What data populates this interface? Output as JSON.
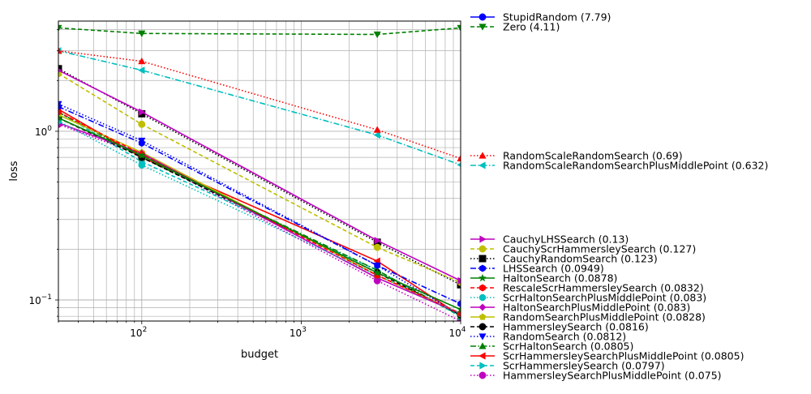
{
  "chart_data": {
    "type": "line",
    "xlabel": "budget",
    "ylabel": "loss",
    "xscale": "log",
    "yscale": "log",
    "xlim": [
      30,
      10000
    ],
    "ylim": [
      0.075,
      4.5
    ],
    "grid": true,
    "legend_position": "right-outside",
    "x_ticks": [
      {
        "value": 100,
        "base": "10",
        "exp": "2"
      },
      {
        "value": 1000,
        "base": "10",
        "exp": "3"
      },
      {
        "value": 10000,
        "base": "10",
        "exp": "4"
      }
    ],
    "y_ticks": [
      {
        "value": 0.1,
        "base": "10",
        "exp": "−1"
      },
      {
        "value": 1,
        "base": "10",
        "exp": "0"
      }
    ],
    "x": [
      30,
      100,
      3000,
      10000
    ],
    "series": [
      {
        "name": "StupidRandom (7.79)",
        "color": "#0000ff",
        "dash": "solid",
        "marker": "circle",
        "values": [
          null,
          null,
          null,
          null
        ],
        "legend_group": "top"
      },
      {
        "name": "Zero (4.11)",
        "color": "#008000",
        "dash": "dashed",
        "marker": "triangle-down",
        "values": [
          4.1,
          3.8,
          3.75,
          4.1
        ],
        "legend_group": "top"
      },
      {
        "name": "RandomScaleRandomSearch (0.69)",
        "color": "#ff0000",
        "dash": "dotted",
        "marker": "triangle-up",
        "values": [
          3.0,
          2.6,
          1.02,
          0.69
        ],
        "legend_group": "middle"
      },
      {
        "name": "RandomScaleRandomSearchPlusMiddlePoint (0.632)",
        "color": "#00bfbf",
        "dash": "dashdot",
        "marker": "triangle-left",
        "values": [
          3.0,
          2.3,
          0.95,
          0.632
        ],
        "legend_group": "middle"
      },
      {
        "name": "CauchyLHSSearch (0.13)",
        "color": "#bf00bf",
        "dash": "solid",
        "marker": "triangle-right",
        "values": [
          2.3,
          1.3,
          0.225,
          0.13
        ],
        "legend_group": "bottom"
      },
      {
        "name": "CauchyScrHammersleySearch (0.127)",
        "color": "#bfbf00",
        "dash": "dashed",
        "marker": "circle",
        "values": [
          2.2,
          1.1,
          0.205,
          0.127
        ],
        "legend_group": "bottom"
      },
      {
        "name": "CauchyRandomSearch (0.123)",
        "color": "#000000",
        "dash": "dotted",
        "marker": "square",
        "values": [
          2.35,
          1.27,
          0.22,
          0.123
        ],
        "legend_group": "bottom"
      },
      {
        "name": "LHSSearch (0.0949)",
        "color": "#0000ff",
        "dash": "dashdot",
        "marker": "hexagon",
        "values": [
          1.4,
          0.85,
          0.16,
          0.0949
        ],
        "legend_group": "bottom"
      },
      {
        "name": "HaltonSearch (0.0878)",
        "color": "#008000",
        "dash": "solid",
        "marker": "star",
        "values": [
          1.2,
          0.72,
          0.145,
          0.0878
        ],
        "legend_group": "bottom"
      },
      {
        "name": "RescaleScrHammersleySearch (0.0832)",
        "color": "#ff0000",
        "dash": "dashed",
        "marker": "hexagon",
        "values": [
          1.3,
          0.73,
          0.14,
          0.0832
        ],
        "legend_group": "bottom"
      },
      {
        "name": "ScrHaltonSearchPlusMiddlePoint (0.083)",
        "color": "#00bfbf",
        "dash": "dotted",
        "marker": "octagon",
        "values": [
          1.15,
          0.63,
          0.14,
          0.083
        ],
        "legend_group": "bottom"
      },
      {
        "name": "HaltonSearchPlusMiddlePoint (0.083)",
        "color": "#bf00bf",
        "dash": "solid",
        "marker": "diamond",
        "values": [
          1.12,
          0.74,
          0.135,
          0.083
        ],
        "legend_group": "bottom"
      },
      {
        "name": "RandomSearchPlusMiddlePoint (0.0828)",
        "color": "#bfbf00",
        "dash": "solid",
        "marker": "pentagon",
        "values": [
          1.25,
          0.75,
          0.14,
          0.0828
        ],
        "legend_group": "bottom"
      },
      {
        "name": "HammersleySearch (0.0816)",
        "color": "#000000",
        "dash": "dashed",
        "marker": "circle",
        "values": [
          1.2,
          0.7,
          0.145,
          0.0816
        ],
        "legend_group": "bottom"
      },
      {
        "name": "RandomSearch (0.0812)",
        "color": "#0000ff",
        "dash": "dotted",
        "marker": "triangle-down",
        "values": [
          1.45,
          0.88,
          0.16,
          0.0812
        ],
        "legend_group": "bottom"
      },
      {
        "name": "ScrHaltonSearch (0.0805)",
        "color": "#008000",
        "dash": "dashdot",
        "marker": "triangle-up",
        "values": [
          1.3,
          0.7,
          0.15,
          0.0805
        ],
        "legend_group": "bottom"
      },
      {
        "name": "ScrHammersleySearchPlusMiddlePoint (0.0805)",
        "color": "#ff0000",
        "dash": "solid",
        "marker": "triangle-left",
        "values": [
          1.35,
          0.7,
          0.17,
          0.0805
        ],
        "legend_group": "bottom"
      },
      {
        "name": "ScrHammersleySearch (0.0797)",
        "color": "#00bfbf",
        "dash": "dashed",
        "marker": "triangle-right",
        "values": [
          1.3,
          0.66,
          0.15,
          0.0797
        ],
        "legend_group": "bottom"
      },
      {
        "name": "HammersleySearchPlusMiddlePoint (0.075)",
        "color": "#bf00bf",
        "dash": "dotted",
        "marker": "circle",
        "values": [
          1.1,
          0.72,
          0.13,
          0.075
        ],
        "legend_group": "bottom"
      }
    ]
  }
}
